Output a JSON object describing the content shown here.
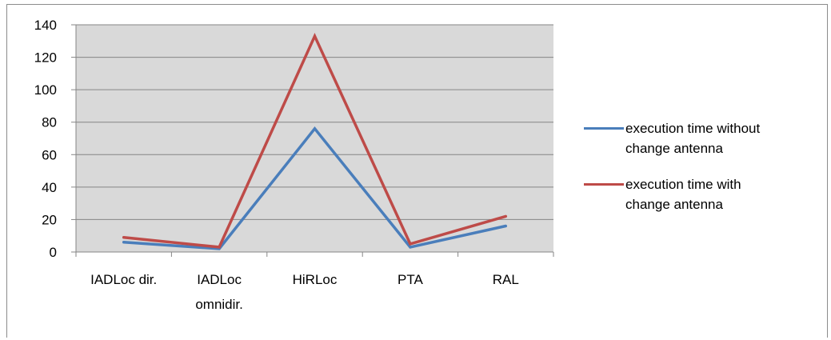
{
  "chart_data": {
    "type": "line",
    "categories": [
      "IADLoc dir.",
      "IADLoc omnidir.",
      "HiRLoc",
      "PTA",
      "RAL"
    ],
    "category_lines": [
      [
        "IADLoc dir."
      ],
      [
        "IADLoc",
        "omnidir."
      ],
      [
        "HiRLoc"
      ],
      [
        "PTA"
      ],
      [
        "RAL"
      ]
    ],
    "series": [
      {
        "name": "execution time without change antenna",
        "values": [
          6,
          2,
          76,
          3,
          16
        ],
        "color": "#4a7ebb"
      },
      {
        "name": "execution time with change antenna",
        "values": [
          9,
          3,
          133,
          5,
          22
        ],
        "color": "#be4b48"
      }
    ],
    "yticks": [
      0,
      20,
      40,
      60,
      80,
      100,
      120,
      140
    ],
    "ylim": [
      0,
      140
    ],
    "grid": true,
    "legend_position": "right",
    "plot_background": "#d9d9d9",
    "gridline_color": "#868686"
  },
  "legend": {
    "items": [
      {
        "line1": "execution time without",
        "line2": "change antenna",
        "color": "#4a7ebb"
      },
      {
        "line1": "execution time with",
        "line2": "change antenna",
        "color": "#be4b48"
      }
    ]
  }
}
